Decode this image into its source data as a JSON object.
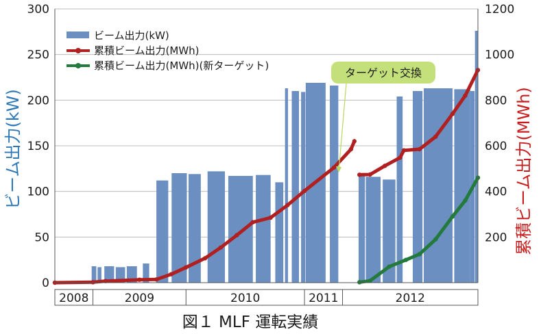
{
  "chart_data": {
    "type": "bar+line",
    "caption": "図１ MLF 運転実績",
    "ylabel_left": "ビーム出力(kW)",
    "ylabel_right": "累積ビーム出力(MWh)",
    "ylim_left": [
      0,
      300
    ],
    "yticks_left": [
      "0",
      "50",
      "100",
      "150",
      "200",
      "250",
      "300"
    ],
    "ylim_right": [
      0,
      1200
    ],
    "yticks_right": [
      "200",
      "400",
      "600",
      "800",
      "1000",
      "1200"
    ],
    "grid": true,
    "legend_position": "top-left",
    "legend": [
      "ビーム出力(kW)",
      "累積ビーム出力(MWh)",
      "累積ビーム出力(MWh)(新ターゲット)"
    ],
    "year_labels": [
      "2008",
      "2009",
      "2010",
      "2011",
      "2012"
    ],
    "year_spans": [
      [
        0,
        0.09
      ],
      [
        0.09,
        0.31
      ],
      [
        0.31,
        0.59
      ],
      [
        0.59,
        0.68
      ],
      [
        0.68,
        1.0
      ]
    ],
    "annotation": "ターゲット交換",
    "colors": {
      "beam": "#6a8fc0",
      "cumulative": "#b02020",
      "cumulative_new": "#237a3c",
      "annotation_bg": "#c4e07a",
      "annotation_arrow": "#b8d860",
      "left_label": "#2e78b8",
      "right_label": "#c81e1e",
      "grid": "#bbbbbb"
    },
    "beam_segments": [
      {
        "t0": 0.087,
        "t1": 0.098,
        "v": 18
      },
      {
        "t0": 0.101,
        "t1": 0.11,
        "v": 17
      },
      {
        "t0": 0.117,
        "t1": 0.14,
        "v": 18
      },
      {
        "t0": 0.144,
        "t1": 0.166,
        "v": 17
      },
      {
        "t0": 0.17,
        "t1": 0.194,
        "v": 18
      },
      {
        "t0": 0.208,
        "t1": 0.223,
        "v": 21
      },
      {
        "t0": 0.24,
        "t1": 0.268,
        "v": 112
      },
      {
        "t0": 0.276,
        "t1": 0.312,
        "v": 120
      },
      {
        "t0": 0.316,
        "t1": 0.345,
        "v": 119
      },
      {
        "t0": 0.361,
        "t1": 0.402,
        "v": 122
      },
      {
        "t0": 0.41,
        "t1": 0.468,
        "v": 117
      },
      {
        "t0": 0.475,
        "t1": 0.51,
        "v": 118
      },
      {
        "t0": 0.521,
        "t1": 0.54,
        "v": 110
      },
      {
        "t0": 0.544,
        "t1": 0.551,
        "v": 213
      },
      {
        "t0": 0.56,
        "t1": 0.577,
        "v": 210
      },
      {
        "t0": 0.582,
        "t1": 0.592,
        "v": 209
      },
      {
        "t0": 0.593,
        "t1": 0.64,
        "v": 219
      },
      {
        "t0": 0.65,
        "t1": 0.67,
        "v": 216
      },
      {
        "t0": 0.718,
        "t1": 0.733,
        "v": 117
      },
      {
        "t0": 0.735,
        "t1": 0.77,
        "v": 116
      },
      {
        "t0": 0.775,
        "t1": 0.805,
        "v": 113
      },
      {
        "t0": 0.808,
        "t1": 0.822,
        "v": 204
      },
      {
        "t0": 0.846,
        "t1": 0.869,
        "v": 210
      },
      {
        "t0": 0.872,
        "t1": 0.94,
        "v": 213
      },
      {
        "t0": 0.944,
        "t1": 0.982,
        "v": 212
      },
      {
        "t0": 0.982,
        "t1": 0.992,
        "v": 210
      },
      {
        "t0": 0.993,
        "t1": 1.0,
        "v": 276
      }
    ],
    "cumulative_series": [
      [
        0.0,
        0
      ],
      [
        0.09,
        2
      ],
      [
        0.12,
        7
      ],
      [
        0.2,
        13
      ],
      [
        0.24,
        14
      ],
      [
        0.275,
        37
      ],
      [
        0.31,
        67
      ],
      [
        0.355,
        107
      ],
      [
        0.392,
        154
      ],
      [
        0.43,
        208
      ],
      [
        0.468,
        265
      ],
      [
        0.51,
        285
      ],
      [
        0.55,
        340
      ],
      [
        0.59,
        402
      ],
      [
        0.66,
        505
      ],
      [
        0.7,
        585
      ],
      [
        0.708,
        620
      ],
      [
        0.72,
        473
      ],
      [
        0.745,
        474
      ],
      [
        0.78,
        512
      ],
      [
        0.816,
        548
      ],
      [
        0.825,
        580
      ],
      [
        0.862,
        585
      ],
      [
        0.9,
        640
      ],
      [
        0.94,
        740
      ],
      [
        0.97,
        820
      ],
      [
        1.0,
        932
      ]
    ],
    "cumulative_gaps_after": [
      16
    ],
    "cumulative_new_series": [
      [
        0.72,
        2
      ],
      [
        0.745,
        8
      ],
      [
        0.79,
        70
      ],
      [
        0.83,
        100
      ],
      [
        0.862,
        125
      ],
      [
        0.9,
        190
      ],
      [
        0.94,
        290
      ],
      [
        0.97,
        360
      ],
      [
        1.0,
        460
      ]
    ],
    "annotation_target": [
      0.692,
      595
    ]
  }
}
